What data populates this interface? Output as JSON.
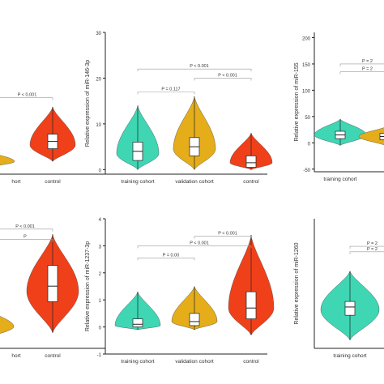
{
  "colors": {
    "training": "#3fd6b4",
    "validation": "#e5ad1a",
    "control": "#f0401a",
    "axis": "#222222",
    "bracket": "#999999",
    "box": "#ffffff"
  },
  "chart_data": [
    {
      "id": "p1",
      "type": "violin",
      "ylabel": "",
      "ylim": [
        -0.25,
        2.2
      ],
      "yticks": [],
      "categories": [
        "",
        "training cohort",
        "control"
      ],
      "category_labels": [
        "",
        "hort",
        "control"
      ],
      "series": [
        {
          "group": "validation",
          "visible_part": "right-half",
          "median": 0.1,
          "q1": 0.02,
          "q3": 0.18,
          "min": -0.05,
          "max": 0.35,
          "peak": 0.1
        },
        {
          "group": "control",
          "median": 0.65,
          "q1": 0.45,
          "q3": 0.85,
          "min": 0.1,
          "max": 1.6,
          "peak": 0.55
        }
      ],
      "annotations": [
        {
          "text": "P < 0.001",
          "from": 0,
          "to": 2,
          "y": 1.85
        }
      ]
    },
    {
      "id": "p2",
      "type": "violin",
      "ylabel": "Relative expression of miR-146-3p",
      "ylim": [
        -1,
        30
      ],
      "yticks": [
        0,
        10,
        20,
        30
      ],
      "categories": [
        "training cohort",
        "validation cohort",
        "control"
      ],
      "category_labels": [
        "training cohort",
        "validation cohort",
        "control"
      ],
      "series": [
        {
          "group": "training",
          "median": 4,
          "q1": 2,
          "q3": 6,
          "min": 0,
          "max": 14,
          "peak": 3.5
        },
        {
          "group": "validation",
          "median": 5,
          "q1": 3,
          "q3": 7,
          "min": 0,
          "max": 16,
          "peak": 4.5
        },
        {
          "group": "control",
          "median": 1.5,
          "q1": 0.5,
          "q3": 3,
          "min": 0,
          "max": 8,
          "peak": 1.5
        }
      ],
      "annotations": [
        {
          "text": "P < 0.001",
          "from": 0,
          "to": 2,
          "y": 22
        },
        {
          "text": "P < 0.001",
          "from": 1,
          "to": 2,
          "y": 20
        },
        {
          "text": "P = 0.117",
          "from": 0,
          "to": 1,
          "y": 17
        }
      ]
    },
    {
      "id": "p3",
      "type": "violin",
      "ylabel": "Relative expression of miR-155",
      "ylim": [
        -55,
        210
      ],
      "yticks": [
        -50,
        0,
        50,
        100,
        150,
        200
      ],
      "categories": [
        "training cohort",
        ""
      ],
      "category_labels": [
        "training cohort",
        ""
      ],
      "series": [
        {
          "group": "training",
          "median": 15,
          "q1": 8,
          "q3": 22,
          "min": -5,
          "max": 45,
          "peak": 15
        },
        {
          "group": "validation",
          "visible_part": "left-edge",
          "median": 12,
          "q1": 6,
          "q3": 18,
          "min": -5,
          "max": 30,
          "peak": 12
        }
      ],
      "annotations": [
        {
          "text": "P = 2",
          "from": 0,
          "to": 1,
          "y": 150
        },
        {
          "text": "P = 2",
          "from": 0,
          "to": 1,
          "y": 135
        }
      ]
    },
    {
      "id": "p4",
      "type": "violin",
      "ylabel": "",
      "ylim": [
        -0.2,
        2.3
      ],
      "yticks": [],
      "categories": [
        "",
        "training cohort",
        "control"
      ],
      "category_labels": [
        "",
        "hort",
        "control"
      ],
      "series": [
        {
          "group": "validation",
          "visible_part": "right-half",
          "median": 0.25,
          "q1": 0.1,
          "q3": 0.4,
          "min": 0,
          "max": 0.55,
          "peak": 0.22
        },
        {
          "group": "control",
          "median": 1.0,
          "q1": 0.7,
          "q3": 1.4,
          "min": 0.1,
          "max": 2.0,
          "peak": 0.9
        }
      ],
      "annotations": [
        {
          "text": "P < 0.001",
          "from": 0,
          "to": 2,
          "y": 2.1
        },
        {
          "text": "P",
          "from": 0,
          "to": 2,
          "y": 1.9
        }
      ]
    },
    {
      "id": "p5",
      "type": "violin",
      "ylabel": "Relative expression of miR-1237-3p",
      "ylim": [
        -1,
        4
      ],
      "yticks": [
        -1,
        0,
        1,
        2,
        3,
        4
      ],
      "categories": [
        "training cohort",
        "validation cohort",
        "control"
      ],
      "category_labels": [
        "training cohort",
        "validation cohort",
        "control"
      ],
      "series": [
        {
          "group": "training",
          "median": 0.1,
          "q1": 0,
          "q3": 0.3,
          "min": -0.1,
          "max": 1.3,
          "peak": 0.05
        },
        {
          "group": "validation",
          "median": 0.2,
          "q1": 0.05,
          "q3": 0.5,
          "min": -0.1,
          "max": 1.5,
          "peak": 0.2
        },
        {
          "group": "control",
          "median": 0.7,
          "q1": 0.3,
          "q3": 1.3,
          "min": -0.3,
          "max": 3.4,
          "peak": 0.7
        }
      ],
      "annotations": [
        {
          "text": "P < 0.001",
          "from": 1,
          "to": 2,
          "y": 3.35
        },
        {
          "text": "P < 0.001",
          "from": 0,
          "to": 2,
          "y": 3.0
        },
        {
          "text": "P = 0.00",
          "from": 0,
          "to": 1,
          "y": 2.55
        }
      ]
    },
    {
      "id": "p6",
      "type": "violin",
      "ylabel": "Relative expression of miR-1260",
      "ylim": [
        -0.5,
        4.2
      ],
      "yticks": [],
      "categories": [
        "training cohort",
        ""
      ],
      "category_labels": [
        "training cohort",
        ""
      ],
      "series": [
        {
          "group": "training",
          "median": 1.0,
          "q1": 0.7,
          "q3": 1.2,
          "min": -0.2,
          "max": 2.3,
          "peak": 0.9
        }
      ],
      "annotations": [
        {
          "text": "P = 2",
          "from": 0,
          "to": 1,
          "y": 3.2
        },
        {
          "text": "P = 2",
          "from": 0,
          "to": 1,
          "y": 3.0
        }
      ]
    }
  ]
}
